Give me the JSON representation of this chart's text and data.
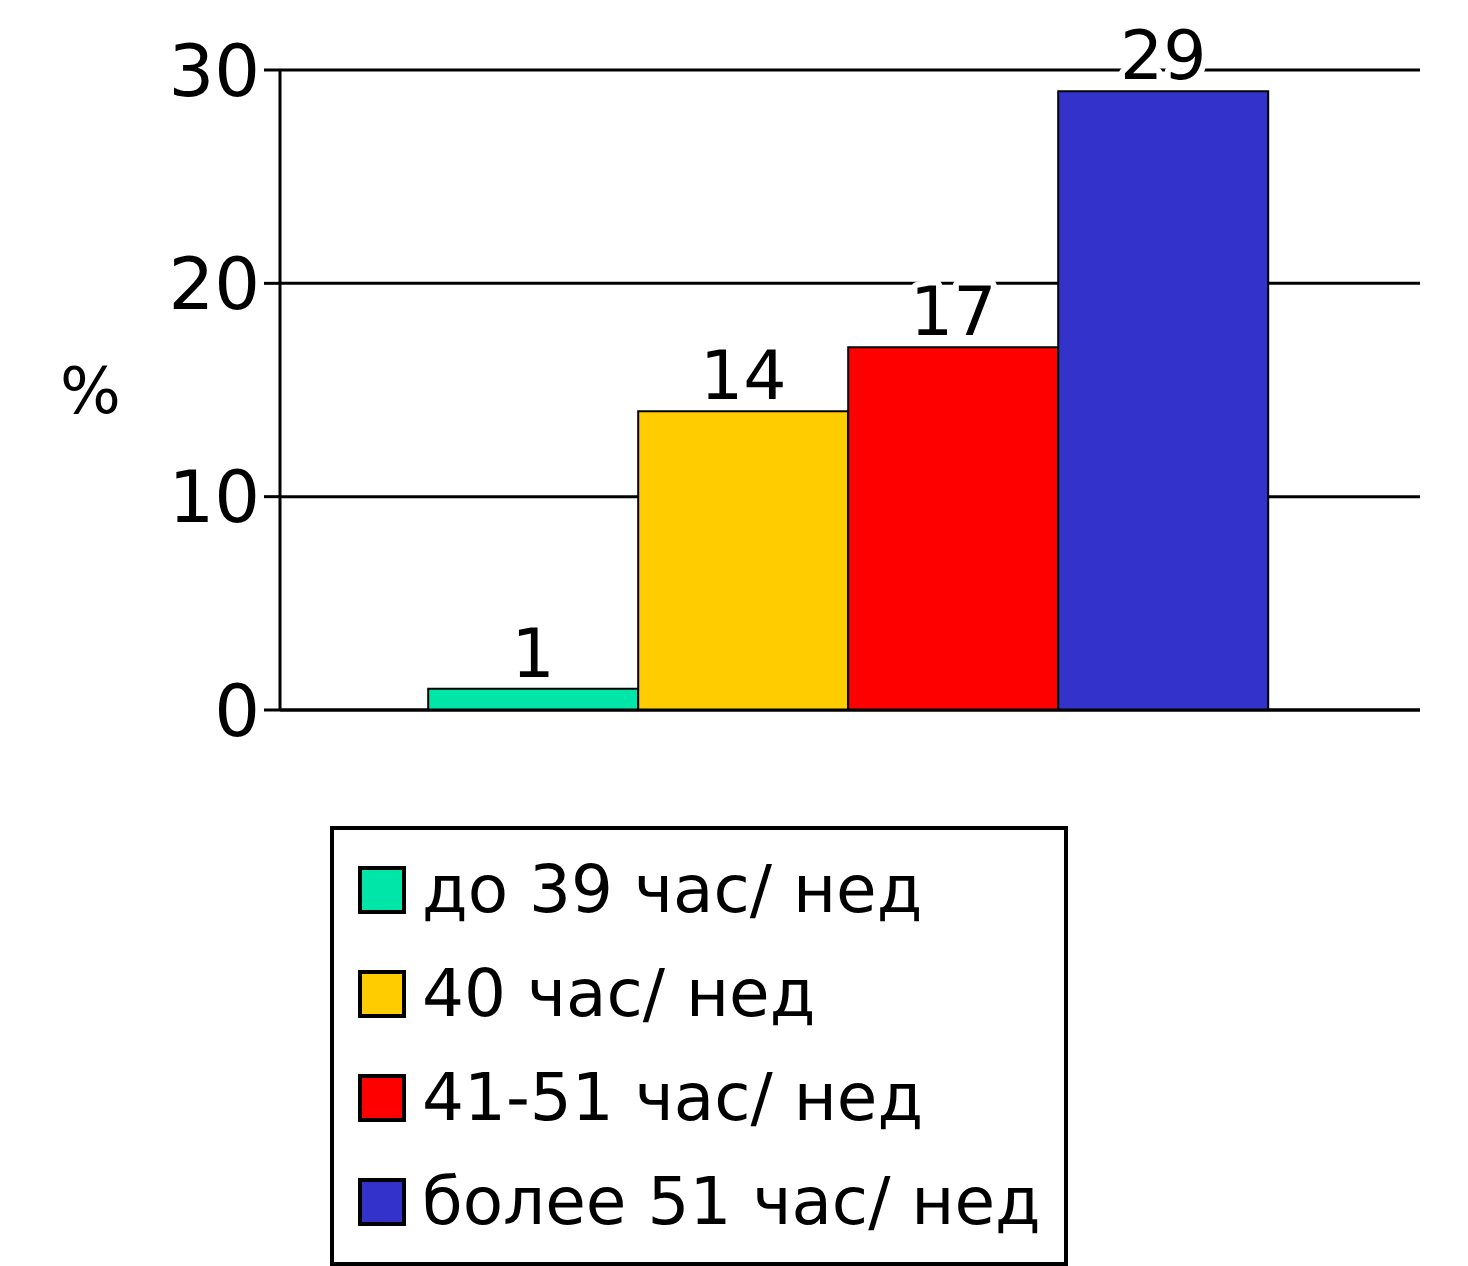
{
  "chart_data": {
    "type": "bar",
    "ylabel": "%",
    "categories": [
      null
    ],
    "series": [
      {
        "name": "до 39 час/ нед",
        "color": "#00e6a8",
        "values": [
          1
        ]
      },
      {
        "name": "40 час/ нед",
        "color": "#ffcc00",
        "values": [
          14
        ]
      },
      {
        "name": "41-51 час/ нед",
        "color": "#ff0000",
        "values": [
          17
        ]
      },
      {
        "name": "более 51 час/ нед",
        "color": "#3333cc",
        "values": [
          29
        ]
      }
    ],
    "ylim": [
      0,
      30
    ],
    "yticks": [
      0,
      10,
      20,
      30
    ],
    "grid": "y",
    "legend": "bottom",
    "data_labels": true
  }
}
